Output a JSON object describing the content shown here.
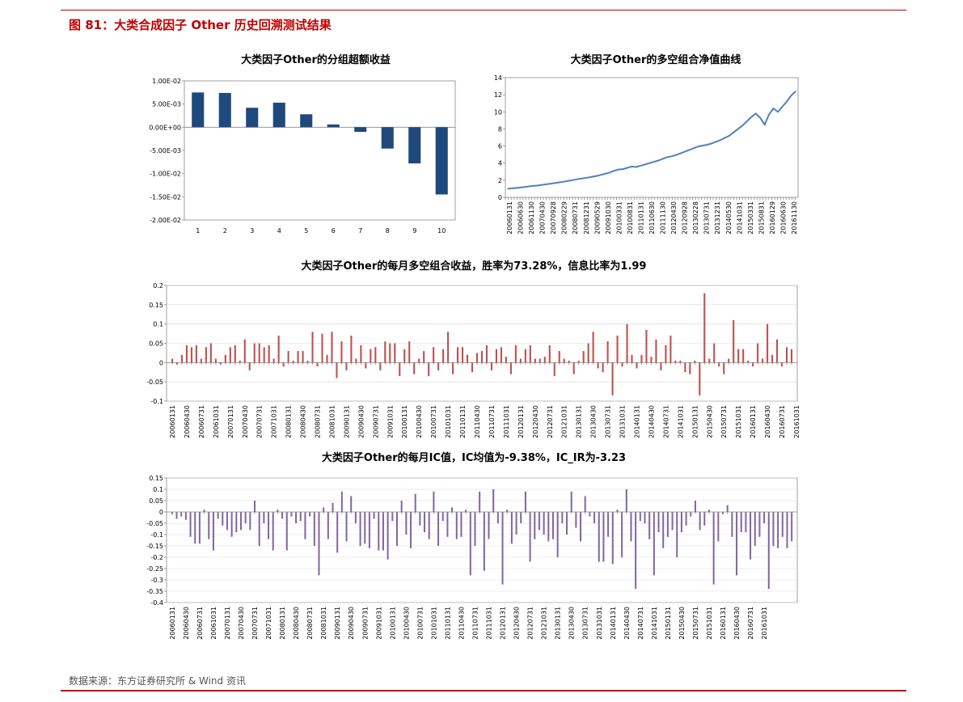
{
  "page": {
    "figure_title": "图 81：大类合成因子 Other 历史回溯测试结果",
    "source": "数据来源：东方证券研究所 & Wind 资讯"
  },
  "colors": {
    "accent": "#c00000",
    "bar_blue": "#1f497d",
    "line_blue": "#4f81bd",
    "bar_red": "#c0504d",
    "bar_purple": "#8064a2"
  },
  "chart_data": [
    {
      "id": "grouped_excess",
      "type": "bar",
      "title": "大类因子Other的分组超额收益",
      "categories": [
        "1",
        "2",
        "3",
        "4",
        "5",
        "6",
        "7",
        "8",
        "9",
        "10"
      ],
      "values": [
        0.0075,
        0.0074,
        0.0042,
        0.0053,
        0.0028,
        0.0006,
        -0.001,
        -0.0046,
        -0.0078,
        -0.0145
      ],
      "ylim": [
        -0.02,
        0.01
      ],
      "yticks": [
        0.01,
        0.005,
        0,
        -0.005,
        -0.01,
        -0.015,
        -0.02
      ],
      "ytick_labels": [
        "1.00E-02",
        "5.00E-03",
        "0.00E+00",
        "-5.00E-03",
        "-1.00E-02",
        "-1.50E-02",
        "-2.00E-02"
      ]
    },
    {
      "id": "long_short_nav",
      "type": "line",
      "title": "大类因子Other的多空组合净值曲线",
      "ylim": [
        0,
        14
      ],
      "yticks": [
        0,
        2,
        4,
        6,
        8,
        10,
        12,
        14
      ],
      "xtick_labels": [
        "20060131",
        "20060630",
        "20061130",
        "20070430",
        "20070928",
        "20080229",
        "20080731",
        "20081231",
        "20090529",
        "20091030",
        "20100331",
        "20100831",
        "20110131",
        "20110630",
        "20111130",
        "20120430",
        "20120928",
        "20130228",
        "20130731",
        "20131231",
        "20140530",
        "20141031",
        "20150331",
        "20150831",
        "20160129",
        "20160630",
        "20161130"
      ],
      "values": [
        1.0,
        1.05,
        1.1,
        1.15,
        1.22,
        1.3,
        1.35,
        1.4,
        1.48,
        1.55,
        1.62,
        1.7,
        1.78,
        1.86,
        1.95,
        2.05,
        2.15,
        2.22,
        2.3,
        2.4,
        2.5,
        2.62,
        2.75,
        2.9,
        3.1,
        3.25,
        3.3,
        3.45,
        3.6,
        3.55,
        3.7,
        3.85,
        4.0,
        4.15,
        4.3,
        4.5,
        4.7,
        4.8,
        4.95,
        5.15,
        5.35,
        5.55,
        5.75,
        5.95,
        6.05,
        6.15,
        6.3,
        6.5,
        6.7,
        6.95,
        7.2,
        7.6,
        8.0,
        8.4,
        8.9,
        9.4,
        9.8,
        9.3,
        8.5,
        9.7,
        10.4,
        10.0,
        10.6,
        11.2,
        11.9,
        12.4
      ]
    },
    {
      "id": "monthly_ls_return",
      "type": "bar",
      "title": "大类因子Other的每月多空组合收益，胜率为73.28%，信息比率为1.99",
      "ylim": [
        -0.1,
        0.2
      ],
      "yticks": [
        0.2,
        0.15,
        0.1,
        0.05,
        0,
        -0.05,
        -0.1
      ],
      "ytick_labels": [
        "0.2",
        "0.15",
        "0.1",
        "0.05",
        "0",
        "-0.05",
        "-0.1"
      ],
      "xtick_labels": [
        "20060131",
        "20060430",
        "20060731",
        "20061031",
        "20070131",
        "20070430",
        "20070731",
        "20071031",
        "20080131",
        "20080430",
        "20080731",
        "20081031",
        "20090131",
        "20090430",
        "20090731",
        "20091031",
        "20100131",
        "20100430",
        "20100731",
        "20101031",
        "20110131",
        "20110430",
        "20110731",
        "20111031",
        "20120131",
        "20120430",
        "20120731",
        "20121031",
        "20130131",
        "20130430",
        "20130731",
        "20131031",
        "20140131",
        "20140430",
        "20140731",
        "20141031",
        "20150131",
        "20150430",
        "20150731",
        "20151031",
        "20160131",
        "20160430",
        "20160731",
        "20161031"
      ],
      "values": [
        0.01,
        -0.005,
        0.02,
        0.045,
        0.04,
        0.045,
        0.01,
        0.04,
        0.05,
        0.01,
        -0.005,
        0.02,
        0.04,
        0.045,
        0.005,
        0.06,
        -0.02,
        0.05,
        0.05,
        0.04,
        0.045,
        0.01,
        0.07,
        -0.01,
        0.03,
        0.005,
        0.03,
        0.03,
        0.005,
        0.08,
        -0.01,
        0.075,
        0.02,
        0.08,
        -0.04,
        0.055,
        -0.02,
        0.07,
        0.01,
        0.045,
        -0.015,
        0.035,
        0.04,
        -0.02,
        0.055,
        0.05,
        0.05,
        -0.035,
        0.035,
        0.055,
        -0.03,
        0.01,
        0.03,
        -0.035,
        0.04,
        -0.02,
        0.035,
        0.08,
        -0.03,
        0.04,
        0.04,
        0.02,
        -0.025,
        0.025,
        0.03,
        0.045,
        -0.02,
        0.035,
        0.04,
        0.015,
        -0.03,
        0.045,
        0.01,
        0.035,
        0.045,
        0.01,
        0.01,
        0.015,
        0.045,
        -0.035,
        0.03,
        0.01,
        0.005,
        -0.03,
        0.005,
        0.03,
        0.05,
        0.08,
        -0.015,
        -0.025,
        0.055,
        -0.085,
        0.07,
        -0.01,
        0.1,
        0.02,
        -0.015,
        0.02,
        0.085,
        0.015,
        0.06,
        -0.02,
        0.045,
        0.07,
        0.005,
        0.005,
        -0.025,
        -0.03,
        0.005,
        -0.085,
        0.18,
        0.01,
        0.05,
        -0.01,
        -0.03,
        0.01,
        0.11,
        0.035,
        0.035,
        0.005,
        -0.01,
        0.05,
        0.01,
        0.1,
        0.02,
        0.06,
        -0.01,
        0.04,
        0.035
      ],
      "win_rate": "73.28%",
      "information_ratio": "1.99"
    },
    {
      "id": "monthly_ic",
      "type": "bar",
      "title": "大类因子Other的每月IC值，IC均值为-9.38%，IC_IR为-3.23",
      "ylim": [
        -0.4,
        0.15
      ],
      "yticks": [
        0.15,
        0.1,
        0.05,
        0,
        -0.05,
        -0.1,
        -0.15,
        -0.2,
        -0.25,
        -0.3,
        -0.35,
        -0.4
      ],
      "ytick_labels": [
        "0.15",
        "0.1",
        "0.05",
        "0",
        "-0.05",
        "-0.1",
        "-0.15",
        "-0.2",
        "-0.25",
        "-0.3",
        "-0.35",
        "-0.4"
      ],
      "xtick_labels": [
        "20060131",
        "20060430",
        "20060731",
        "20061031",
        "20070131",
        "20070430",
        "20070731",
        "20071031",
        "20080131",
        "20080430",
        "20080731",
        "20081031",
        "20090131",
        "20090430",
        "20090731",
        "20091031",
        "20100131",
        "20100430",
        "20100731",
        "20101031",
        "20110131",
        "20110430",
        "20110731",
        "20111031",
        "20120131",
        "20120430",
        "20120731",
        "20121031",
        "20130131",
        "20130430",
        "20130731",
        "20131031",
        "20140131",
        "20140430",
        "20140731",
        "20141031",
        "20150131",
        "20150430",
        "20150731",
        "20151031",
        "20160131",
        "20160430",
        "20160731",
        "20161031"
      ],
      "values": [
        -0.01,
        -0.03,
        -0.02,
        -0.035,
        -0.11,
        -0.14,
        -0.14,
        0.01,
        -0.12,
        -0.17,
        -0.03,
        -0.06,
        -0.08,
        -0.11,
        -0.09,
        -0.08,
        -0.05,
        -0.08,
        0.05,
        -0.15,
        -0.05,
        -0.12,
        -0.17,
        0.01,
        -0.03,
        -0.17,
        -0.02,
        -0.05,
        -0.04,
        -0.12,
        -0.02,
        -0.15,
        -0.28,
        0.02,
        -0.12,
        0.04,
        -0.18,
        0.09,
        -0.13,
        0.07,
        -0.05,
        -0.15,
        -0.14,
        -0.16,
        -0.03,
        -0.17,
        -0.17,
        -0.21,
        -0.04,
        -0.15,
        0.05,
        -0.1,
        -0.16,
        0.08,
        -0.06,
        -0.09,
        -0.12,
        0.09,
        -0.15,
        -0.04,
        -0.11,
        0.02,
        -0.12,
        -0.11,
        0.01,
        -0.28,
        -0.15,
        0.09,
        -0.26,
        -0.12,
        0.1,
        -0.05,
        -0.32,
        0.01,
        -0.14,
        -0.1,
        -0.05,
        0.09,
        -0.22,
        -0.12,
        -0.08,
        -0.1,
        -0.13,
        -0.12,
        -0.2,
        -0.05,
        -0.1,
        0.09,
        -0.07,
        -0.13,
        0.07,
        -0.02,
        -0.05,
        -0.22,
        -0.22,
        -0.11,
        -0.23,
        0.01,
        -0.2,
        0.1,
        -0.13,
        -0.34,
        -0.04,
        -0.05,
        -0.12,
        -0.28,
        -0.09,
        -0.16,
        -0.11,
        -0.08,
        -0.2,
        -0.09,
        -0.06,
        -0.02,
        0.05,
        -0.08,
        -0.06,
        0.01,
        -0.32,
        -0.13,
        -0.01,
        0.03,
        -0.11,
        -0.28,
        -0.09,
        -0.09,
        -0.21,
        -0.15,
        -0.11,
        -0.05,
        -0.34,
        -0.15,
        -0.16,
        -0.11,
        -0.16,
        -0.13
      ]
    }
  ]
}
